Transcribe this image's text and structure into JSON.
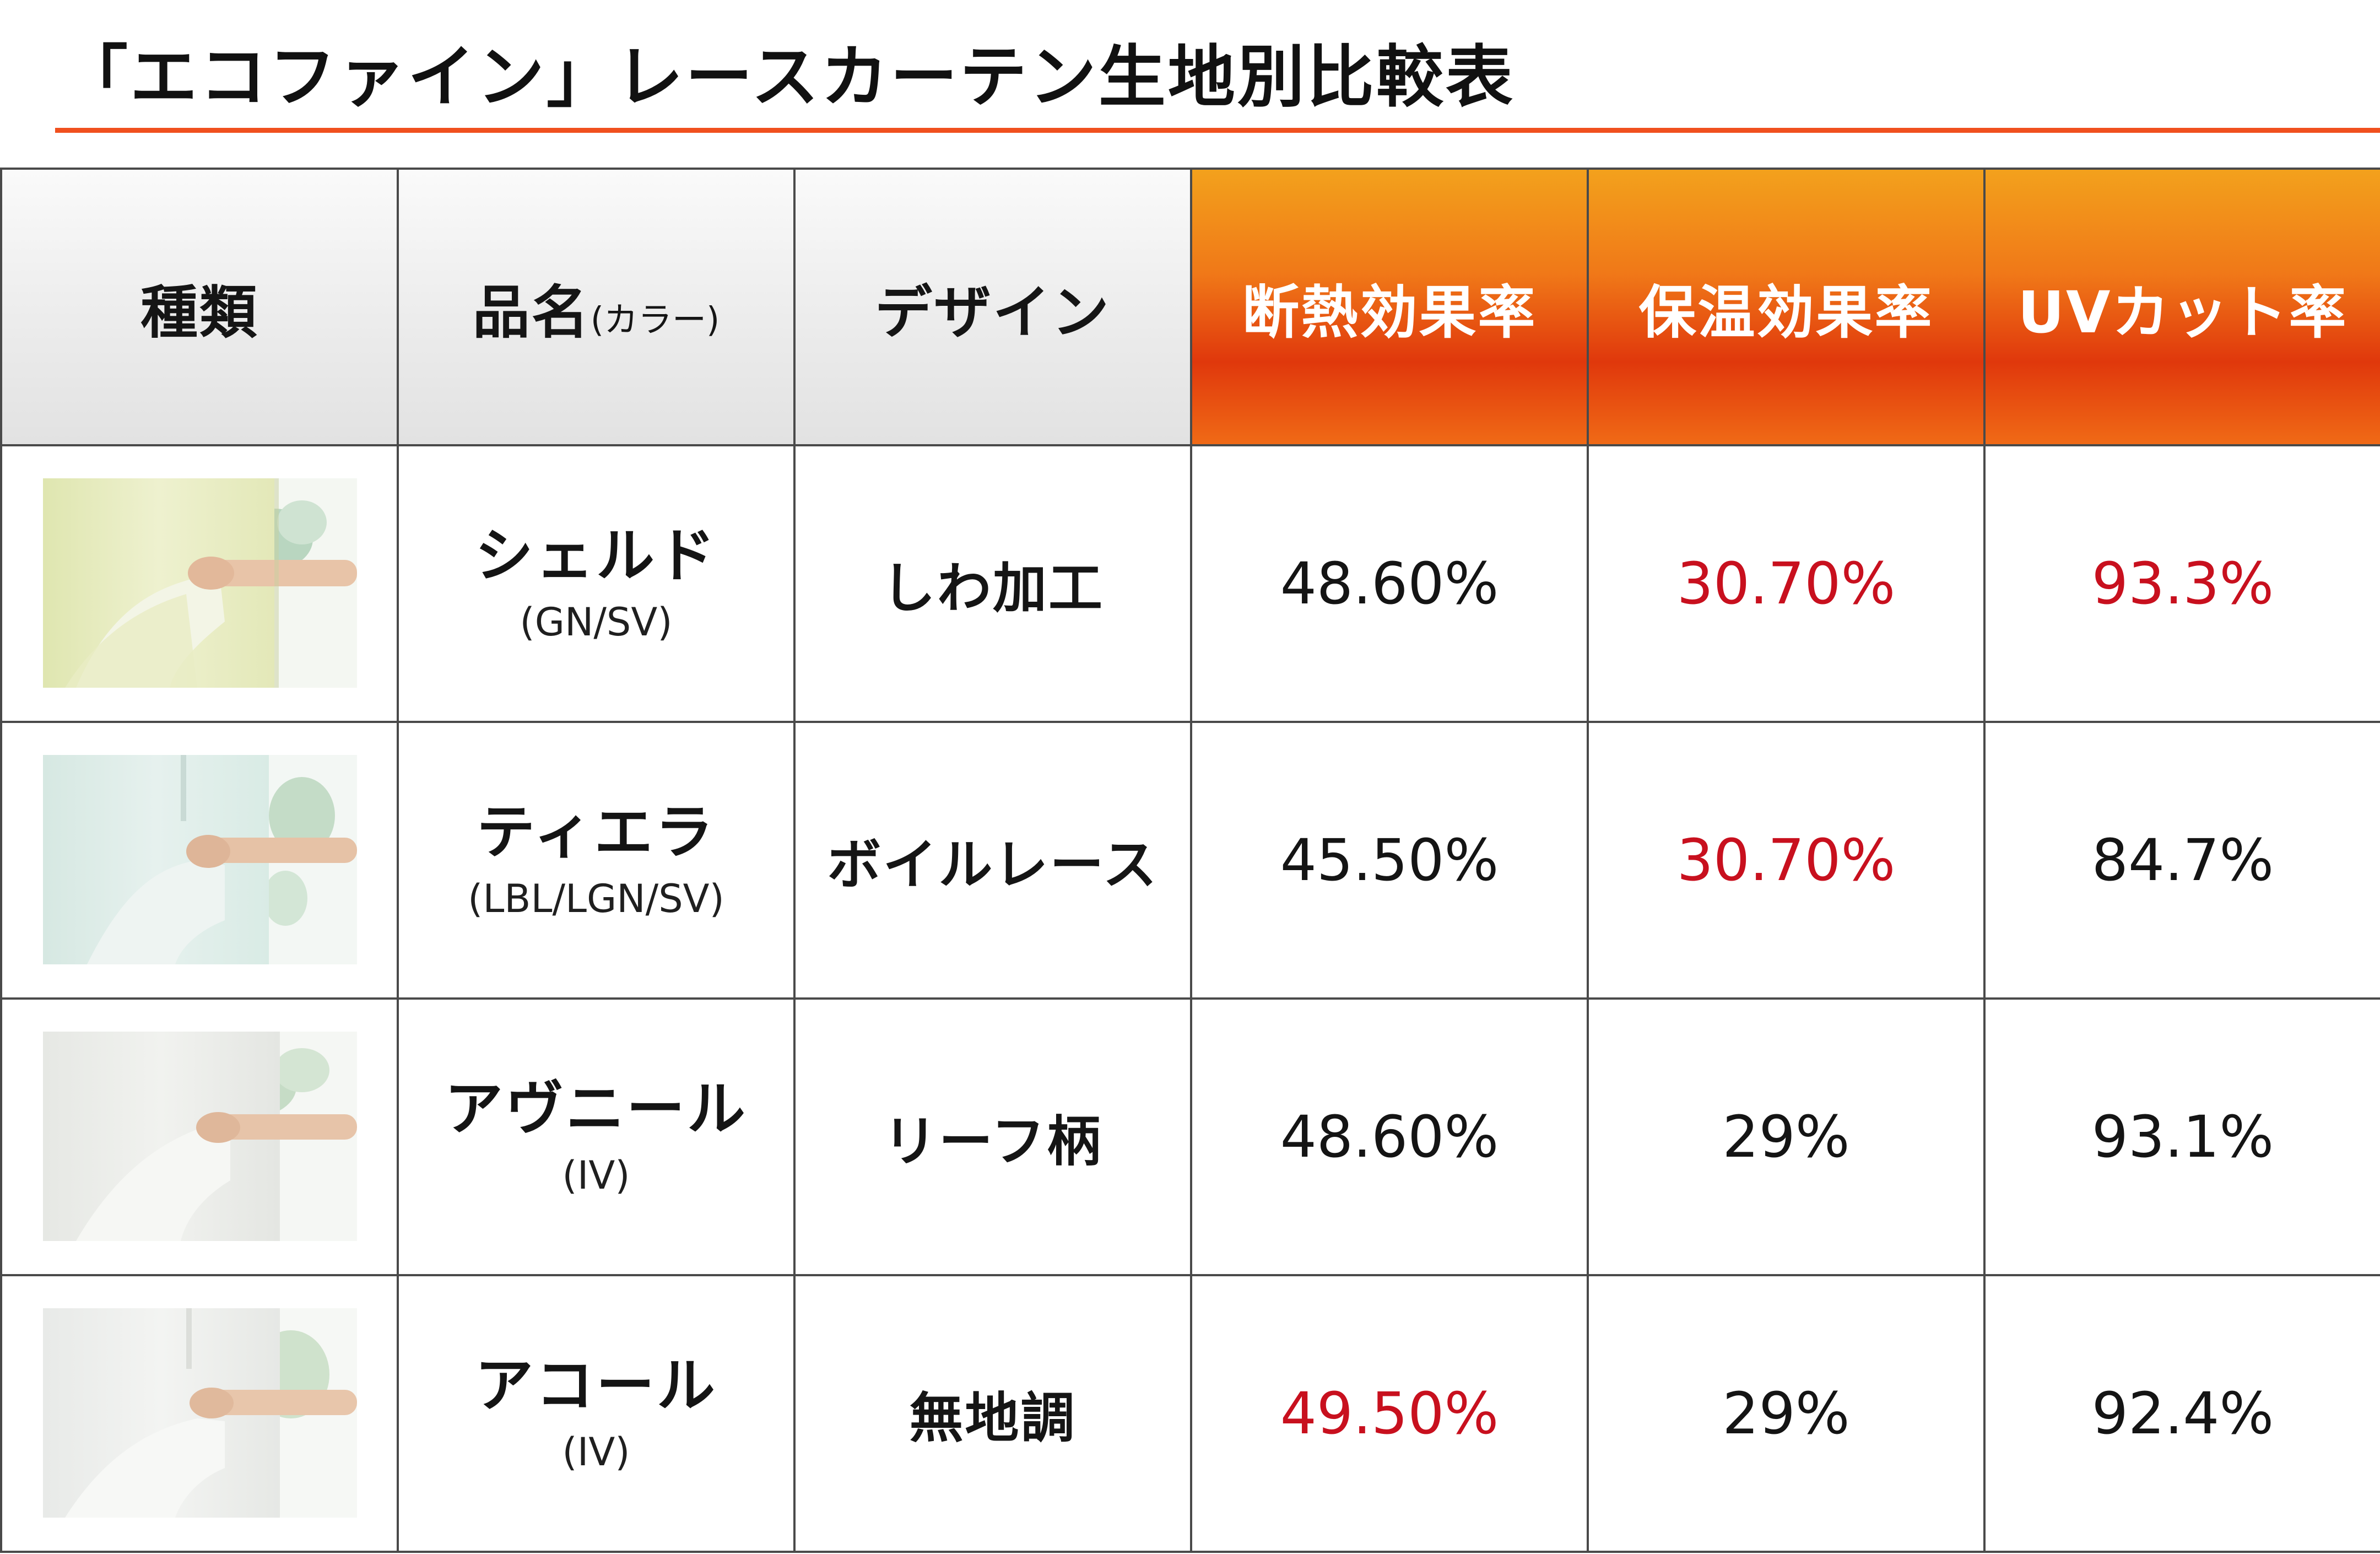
{
  "title": "「エコファイン」レースカーテン生地別比較表",
  "colors": {
    "accent_rule": "#f0501e",
    "highlight_text": "#c8101e",
    "header_gradient": [
      "#f3a11c",
      "#e0380c"
    ]
  },
  "table": {
    "headers": {
      "type": "種類",
      "product": "品名",
      "product_suffix": "(カラー)",
      "design": "デザイン",
      "insulation": "断熱効果率",
      "heat_retention": "保温効果率",
      "uv_cut": "UVカット率"
    },
    "rows": [
      {
        "swatch_icon": "lace-curtain-swatch-green",
        "name": "シェルド",
        "colors": "(GN/SV)",
        "design": "しわ加工",
        "insulation": "48.60%",
        "heat_retention": "30.70%",
        "uv_cut": "93.3%",
        "highlight": {
          "insulation": false,
          "heat_retention": true,
          "uv_cut": true
        }
      },
      {
        "swatch_icon": "lace-curtain-swatch-aqua",
        "name": "ティエラ",
        "colors": "(LBL/LGN/SV)",
        "design": "ボイルレース",
        "insulation": "45.50%",
        "heat_retention": "30.70%",
        "uv_cut": "84.7%",
        "highlight": {
          "insulation": false,
          "heat_retention": true,
          "uv_cut": false
        }
      },
      {
        "swatch_icon": "lace-curtain-swatch-ivory",
        "name": "アヴニール",
        "colors": "(IV)",
        "design": "リーフ柄",
        "insulation": "48.60%",
        "heat_retention": "29%",
        "uv_cut": "93.1%",
        "highlight": {
          "insulation": false,
          "heat_retention": false,
          "uv_cut": false
        }
      },
      {
        "swatch_icon": "lace-curtain-swatch-white",
        "name": "アコール",
        "colors": "(IV)",
        "design": "無地調",
        "insulation": "49.50%",
        "heat_retention": "29%",
        "uv_cut": "92.4%",
        "highlight": {
          "insulation": true,
          "heat_retention": false,
          "uv_cut": false
        }
      }
    ]
  }
}
